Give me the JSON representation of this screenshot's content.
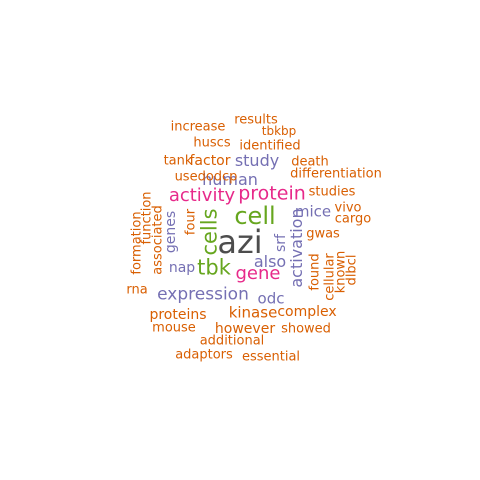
{
  "colors": {
    "dark_gray": "#4d4d4d",
    "green": "#66a61e",
    "magenta": "#e7298a",
    "purple": "#7570b3",
    "orange": "#d95f02"
  },
  "words": [
    {
      "text": "azi",
      "color": "dark_gray",
      "rotated": false
    },
    {
      "text": "cell",
      "color": "green",
      "rotated": false
    },
    {
      "text": "tbk",
      "color": "green",
      "rotated": false
    },
    {
      "text": "cells",
      "color": "green",
      "rotated": true
    },
    {
      "text": "protein",
      "color": "magenta",
      "rotated": false
    },
    {
      "text": "activity",
      "color": "magenta",
      "rotated": false
    },
    {
      "text": "gene",
      "color": "magenta",
      "rotated": false
    },
    {
      "text": "expression",
      "color": "purple",
      "rotated": false
    },
    {
      "text": "also",
      "color": "purple",
      "rotated": false
    },
    {
      "text": "human",
      "color": "purple",
      "rotated": false
    },
    {
      "text": "activation",
      "color": "purple",
      "rotated": true
    },
    {
      "text": "study",
      "color": "purple",
      "rotated": false
    },
    {
      "text": "mice",
      "color": "purple",
      "rotated": false
    },
    {
      "text": "genes",
      "color": "purple",
      "rotated": true
    },
    {
      "text": "odc",
      "color": "purple",
      "rotated": false
    },
    {
      "text": "srf",
      "color": "purple",
      "rotated": true
    },
    {
      "text": "nap",
      "color": "purple",
      "rotated": false
    },
    {
      "text": "results",
      "color": "orange",
      "rotated": false
    },
    {
      "text": "increase",
      "color": "orange",
      "rotated": false
    },
    {
      "text": "tbkbp",
      "color": "orange",
      "rotated": false
    },
    {
      "text": "huscs",
      "color": "orange",
      "rotated": false
    },
    {
      "text": "identified",
      "color": "orange",
      "rotated": false
    },
    {
      "text": "tank",
      "color": "orange",
      "rotated": false
    },
    {
      "text": "factor",
      "color": "orange",
      "rotated": false
    },
    {
      "text": "death",
      "color": "orange",
      "rotated": false
    },
    {
      "text": "usedodcp",
      "color": "orange",
      "rotated": false
    },
    {
      "text": "differentiation",
      "color": "orange",
      "rotated": false
    },
    {
      "text": "studies",
      "color": "orange",
      "rotated": false
    },
    {
      "text": "vivo",
      "color": "orange",
      "rotated": false
    },
    {
      "text": "cargo",
      "color": "orange",
      "rotated": false
    },
    {
      "text": "gwas",
      "color": "orange",
      "rotated": false
    },
    {
      "text": "four",
      "color": "orange",
      "rotated": true
    },
    {
      "text": "function",
      "color": "orange",
      "rotated": true
    },
    {
      "text": "associated",
      "color": "orange",
      "rotated": true
    },
    {
      "text": "formation",
      "color": "orange",
      "rotated": true
    },
    {
      "text": "found",
      "color": "orange",
      "rotated": true
    },
    {
      "text": "cellular",
      "color": "orange",
      "rotated": true
    },
    {
      "text": "known",
      "color": "orange",
      "rotated": true
    },
    {
      "text": "dlbcl",
      "color": "orange",
      "rotated": true
    },
    {
      "text": "rna",
      "color": "orange",
      "rotated": false
    },
    {
      "text": "kinase",
      "color": "orange",
      "rotated": false
    },
    {
      "text": "complex",
      "color": "orange",
      "rotated": false
    },
    {
      "text": "proteins",
      "color": "orange",
      "rotated": false
    },
    {
      "text": "mouse",
      "color": "orange",
      "rotated": false
    },
    {
      "text": "however",
      "color": "orange",
      "rotated": false
    },
    {
      "text": "showed",
      "color": "orange",
      "rotated": false
    },
    {
      "text": "additional",
      "color": "orange",
      "rotated": false
    },
    {
      "text": "adaptors",
      "color": "orange",
      "rotated": false
    },
    {
      "text": "essential",
      "color": "orange",
      "rotated": false
    }
  ]
}
